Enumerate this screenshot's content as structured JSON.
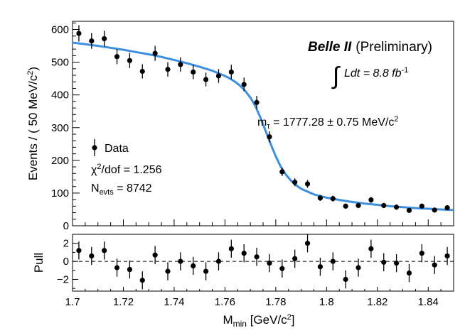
{
  "chart_data": [
    {
      "type": "scatter",
      "role": "main-panel",
      "ylabel": "Events / ( 50 MeV/c",
      "ylabel_sup": "2",
      "ylabel_end": ")",
      "xlim": [
        1.7,
        1.85
      ],
      "ylim": [
        0,
        625
      ],
      "yticks": [
        0,
        100,
        200,
        300,
        400,
        500,
        600
      ],
      "grid": false,
      "series": [
        {
          "name": "Data",
          "x": [
            1.7025,
            1.7075,
            1.7125,
            1.7175,
            1.7225,
            1.7275,
            1.7325,
            1.7375,
            1.7425,
            1.7475,
            1.7525,
            1.7575,
            1.7625,
            1.7675,
            1.7725,
            1.7775,
            1.7825,
            1.7875,
            1.7925,
            1.7975,
            1.8025,
            1.8075,
            1.8125,
            1.8175,
            1.8225,
            1.8275,
            1.8325,
            1.8375,
            1.8425,
            1.8475
          ],
          "y": [
            588,
            565,
            572,
            517,
            505,
            472,
            527,
            478,
            493,
            470,
            447,
            458,
            470,
            432,
            377,
            272,
            165,
            133,
            128,
            85,
            83,
            60,
            62,
            79,
            62,
            57,
            47,
            60,
            48,
            55
          ],
          "yerr": [
            25,
            24,
            24,
            23,
            23,
            22,
            23,
            22,
            22,
            22,
            21,
            21,
            22,
            21,
            20,
            17,
            13,
            12,
            12,
            9,
            9,
            8,
            8,
            9,
            8,
            8,
            7,
            8,
            7,
            7
          ],
          "color": "#000000"
        },
        {
          "name": "fit",
          "type": "line",
          "color": "#3d8fe0",
          "x": [
            1.7,
            1.705,
            1.71,
            1.715,
            1.72,
            1.725,
            1.73,
            1.735,
            1.74,
            1.745,
            1.75,
            1.755,
            1.76,
            1.762,
            1.764,
            1.766,
            1.768,
            1.77,
            1.772,
            1.774,
            1.776,
            1.778,
            1.78,
            1.782,
            1.784,
            1.786,
            1.788,
            1.79,
            1.795,
            1.8,
            1.805,
            1.81,
            1.815,
            1.82,
            1.825,
            1.83,
            1.835,
            1.84,
            1.845,
            1.85
          ],
          "y": [
            560,
            555,
            550,
            544,
            538,
            531,
            524,
            516,
            507,
            497,
            486,
            474,
            458,
            450,
            440,
            428,
            412,
            392,
            365,
            330,
            290,
            250,
            212,
            180,
            156,
            138,
            124,
            113,
            96,
            86,
            79,
            73,
            68,
            64,
            60,
            57,
            54,
            52,
            50,
            48
          ]
        }
      ],
      "annotations": {
        "experiment": "Belle II",
        "status": "(Preliminary)",
        "lumi_integral": "∫",
        "lumi_text": "Ldt = 8.8 fb",
        "lumi_sup": "-1",
        "mass_m": "m",
        "mass_sub": "τ",
        "mass_value": " = 1777.28 ± 0.75 MeV/c",
        "mass_sup": "2",
        "legend_entry": "Data",
        "chi2_a": "χ",
        "chi2_sup": "2",
        "chi2_b": "/dof = 1.256",
        "nevts_n": "N",
        "nevts_sub": "evts",
        "nevts_value": " = 8742"
      }
    },
    {
      "type": "scatter",
      "role": "pull-panel",
      "ylabel": "Pull",
      "xlabel_m": "M",
      "xlabel_sub": "min",
      "xlabel_rest": " [GeV/c",
      "xlabel_sup": "2",
      "xlabel_end": "]",
      "xlim": [
        1.7,
        1.85
      ],
      "ylim": [
        -3.3,
        3.0
      ],
      "yticks": [
        -2,
        0,
        2
      ],
      "ytick_labels": [
        "−2",
        "0",
        "2"
      ],
      "xticks": [
        1.7,
        1.72,
        1.74,
        1.76,
        1.78,
        1.8,
        1.82,
        1.84
      ],
      "xtick_labels": [
        "1.7",
        "1.72",
        "1.74",
        "1.76",
        "1.78",
        "1.8",
        "1.82",
        "1.84"
      ],
      "reference_line": 0,
      "series": [
        {
          "name": "pull",
          "x": [
            1.7025,
            1.7075,
            1.7125,
            1.7175,
            1.7225,
            1.7275,
            1.7325,
            1.7375,
            1.7425,
            1.7475,
            1.7525,
            1.7575,
            1.7625,
            1.7675,
            1.7725,
            1.7775,
            1.7825,
            1.7875,
            1.7925,
            1.7975,
            1.8025,
            1.8075,
            1.8125,
            1.8175,
            1.8225,
            1.8275,
            1.8325,
            1.8375,
            1.8425,
            1.8475
          ],
          "y": [
            1.2,
            0.6,
            1.2,
            -0.7,
            -0.9,
            -2.1,
            0.7,
            -1.1,
            0.0,
            -0.5,
            -1.1,
            0.0,
            1.4,
            0.9,
            0.5,
            -0.2,
            -0.8,
            0.3,
            2.0,
            -0.6,
            0.0,
            -2.0,
            -0.7,
            1.4,
            -0.1,
            -0.2,
            -1.3,
            0.9,
            -0.4,
            0.6
          ],
          "color": "#000000"
        }
      ]
    }
  ]
}
